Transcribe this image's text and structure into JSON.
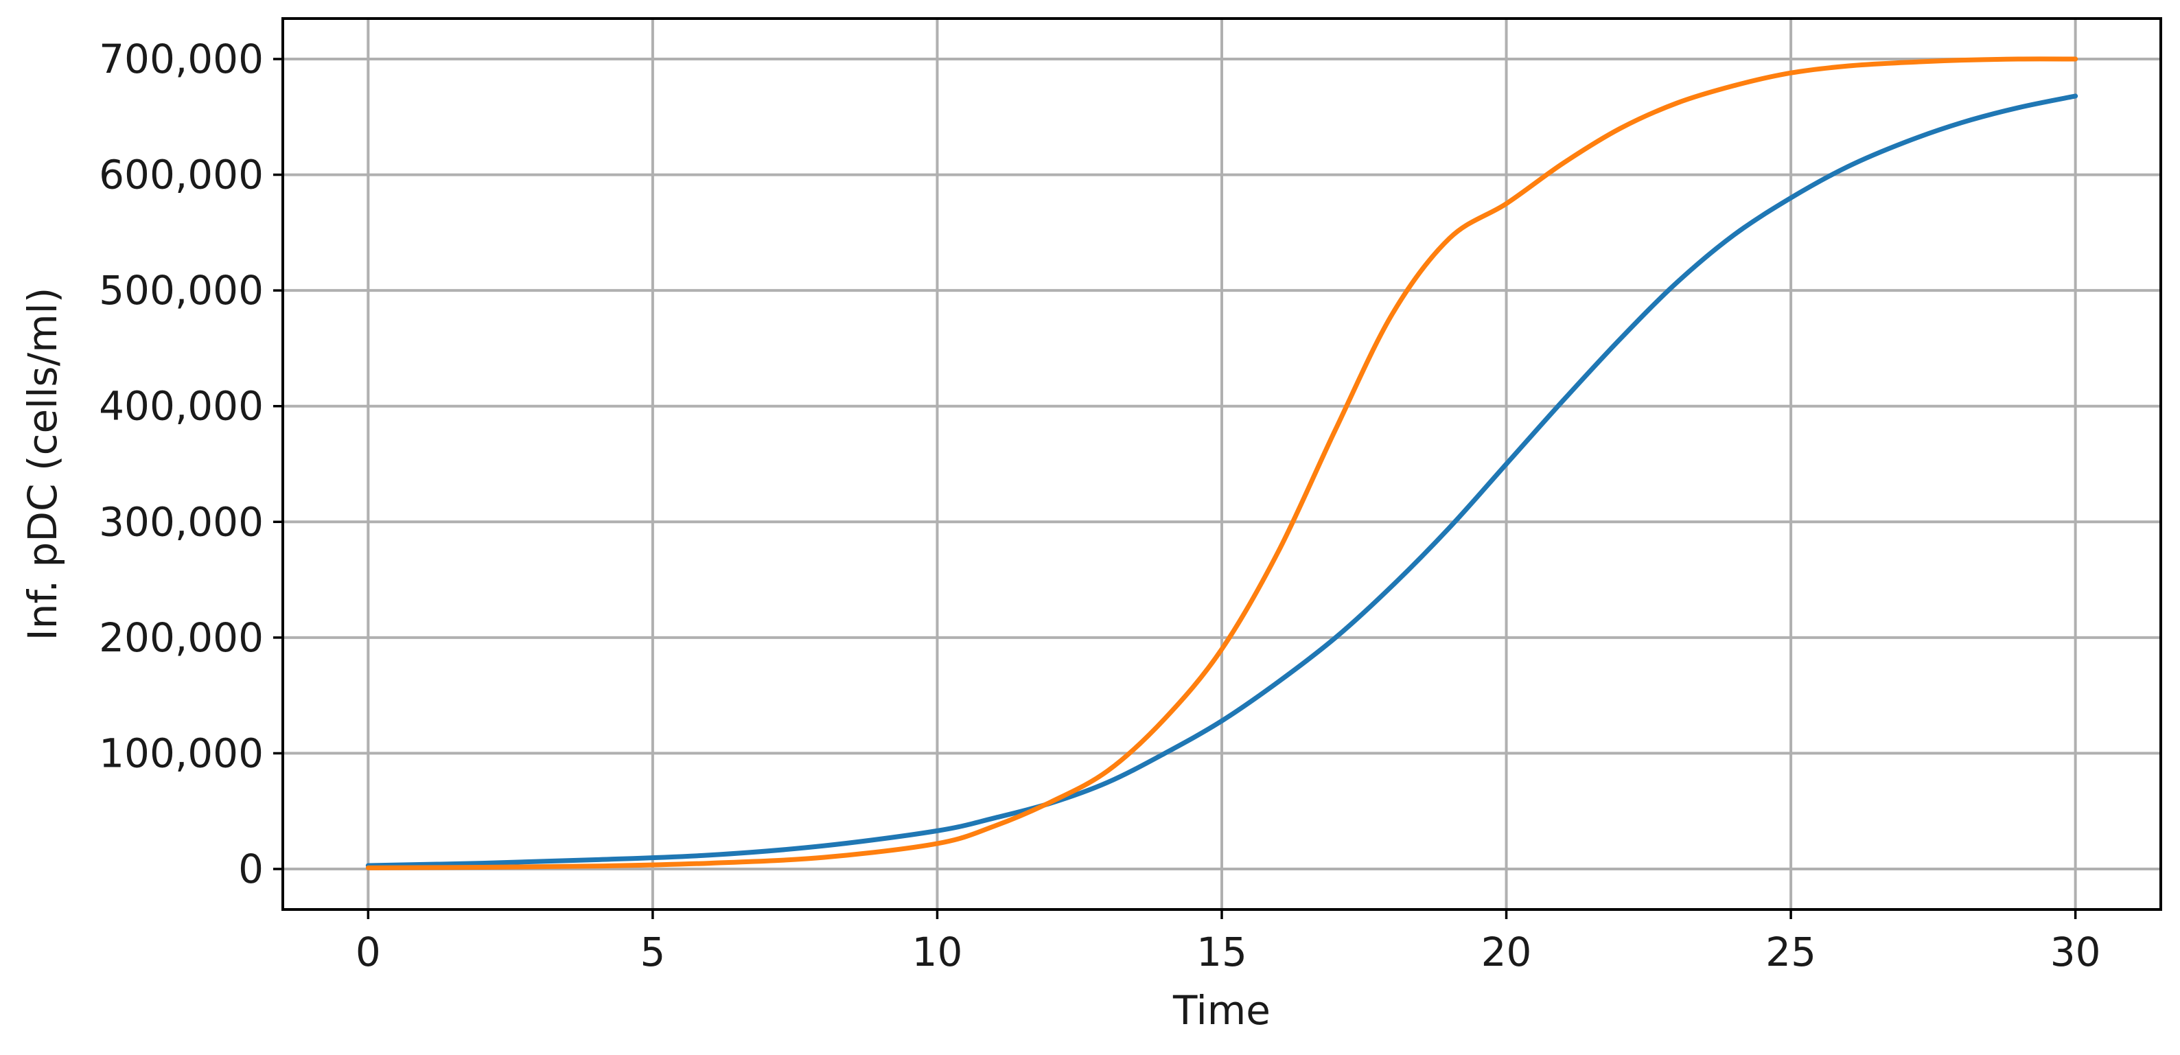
{
  "chart_data": {
    "type": "line",
    "title": "",
    "xlabel": "Time",
    "ylabel": "Inf. pDC (cells/ml)",
    "xlim": [
      -1.5,
      31.5
    ],
    "ylim": [
      -35000,
      735000
    ],
    "xticks": [
      0,
      5,
      10,
      15,
      20,
      25,
      30
    ],
    "xtick_labels": [
      "0",
      "5",
      "10",
      "15",
      "20",
      "25",
      "30"
    ],
    "yticks": [
      0,
      100000,
      200000,
      300000,
      400000,
      500000,
      600000,
      700000
    ],
    "ytick_labels": [
      "0",
      "100,000",
      "200,000",
      "300,000",
      "400,000",
      "500,000",
      "600,000",
      "700,000"
    ],
    "grid": true,
    "x": [
      0,
      2,
      4,
      6,
      8,
      10,
      11,
      12,
      13,
      14,
      15,
      16,
      17,
      18,
      19,
      20,
      21,
      22,
      23,
      24,
      25,
      26,
      27,
      28,
      29,
      30
    ],
    "series": [
      {
        "color": "#1f77b4",
        "values": [
          3000,
          5000,
          8000,
          12000,
          20000,
          33000,
          44000,
          57000,
          75000,
          100000,
          128000,
          162000,
          200000,
          245000,
          295000,
          350000,
          405000,
          458000,
          507000,
          548000,
          580000,
          607000,
          628000,
          645000,
          658000,
          668000
        ]
      },
      {
        "color": "#ff7f0e",
        "values": [
          1000,
          1500,
          2500,
          5000,
          10000,
          22000,
          37000,
          58000,
          85000,
          130000,
          190000,
          275000,
          380000,
          480000,
          545000,
          575000,
          610000,
          640000,
          662000,
          677000,
          688000,
          694000,
          697000,
          699000,
          700000,
          700000
        ]
      }
    ]
  }
}
